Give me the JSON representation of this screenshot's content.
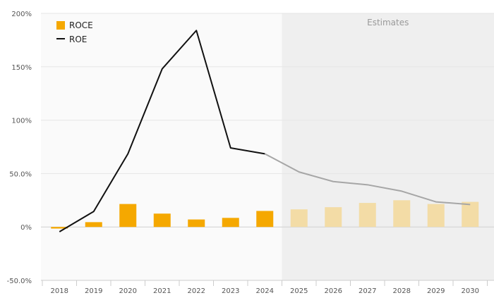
{
  "chart_data": {
    "type": "bar+line",
    "categories": [
      "2018",
      "2019",
      "2020",
      "2021",
      "2022",
      "2023",
      "2024",
      "2025",
      "2026",
      "2027",
      "2028",
      "2029",
      "2030"
    ],
    "y_ticks": [
      {
        "value": 200,
        "label": "200%"
      },
      {
        "value": 150,
        "label": "150%"
      },
      {
        "value": 100,
        "label": "100%"
      },
      {
        "value": 50,
        "label": "50.0%"
      },
      {
        "value": 0,
        "label": "0%"
      },
      {
        "value": -50,
        "label": "-50.0%"
      }
    ],
    "ylim": [
      -50,
      200
    ],
    "grid": true,
    "estimates_label": "Estimates",
    "estimates_start_index": 7,
    "series": [
      {
        "name": "ROCE",
        "type": "bar",
        "color": "#f5a800",
        "estimate_color": "#f3dca6",
        "values": [
          -1.5,
          4.5,
          21.5,
          12.5,
          7.0,
          8.5,
          15.0,
          16.5,
          18.5,
          22.5,
          25.0,
          21.5,
          23.5
        ]
      },
      {
        "name": "ROE",
        "type": "line",
        "color": "#111111",
        "estimate_color": "#a6a6a6",
        "values": [
          -4.5,
          14.5,
          68.5,
          148.0,
          184.0,
          74.0,
          68.5,
          51.5,
          42.5,
          39.5,
          33.5,
          23.5,
          21.0
        ]
      }
    ],
    "legend": {
      "placement": "top-left"
    }
  }
}
